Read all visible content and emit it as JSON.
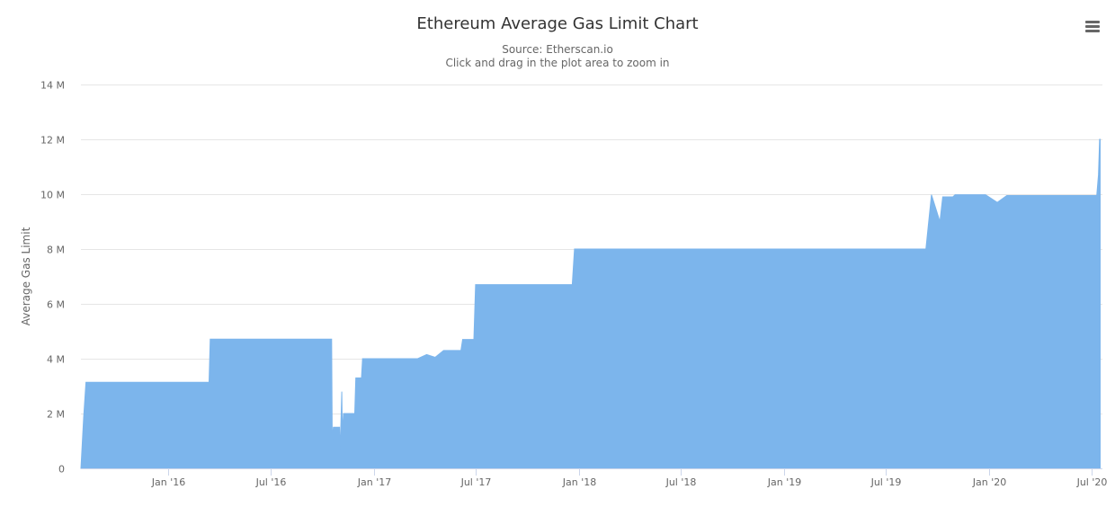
{
  "chart_data": {
    "type": "area",
    "title": "Ethereum Average Gas Limit Chart",
    "subtitle_lines": [
      "Source: Etherscan.io",
      "Click and drag in the plot area to zoom in"
    ],
    "ylabel": "Average Gas Limit",
    "xlabel": "",
    "ylim": [
      0,
      14000000
    ],
    "y_ticks": [
      {
        "value": 0,
        "label": "0"
      },
      {
        "value": 2000000,
        "label": "2 M"
      },
      {
        "value": 4000000,
        "label": "4 M"
      },
      {
        "value": 6000000,
        "label": "6 M"
      },
      {
        "value": 8000000,
        "label": "8 M"
      },
      {
        "value": 10000000,
        "label": "10 M"
      },
      {
        "value": 12000000,
        "label": "12 M"
      },
      {
        "value": 14000000,
        "label": "14 M"
      }
    ],
    "xlim": [
      "2015-07-30",
      "2020-07-20"
    ],
    "x_ticks": [
      {
        "value": "2016-01-01",
        "label": "Jan '16"
      },
      {
        "value": "2016-07-01",
        "label": "Jul '16"
      },
      {
        "value": "2017-01-01",
        "label": "Jan '17"
      },
      {
        "value": "2017-07-01",
        "label": "Jul '17"
      },
      {
        "value": "2018-01-01",
        "label": "Jan '18"
      },
      {
        "value": "2018-07-01",
        "label": "Jul '18"
      },
      {
        "value": "2019-01-01",
        "label": "Jan '19"
      },
      {
        "value": "2019-07-01",
        "label": "Jul '19"
      },
      {
        "value": "2020-01-01",
        "label": "Jan '20"
      },
      {
        "value": "2020-07-01",
        "label": "Jul '20"
      }
    ],
    "grid": true,
    "legend": "none",
    "color": "#7cb5ec",
    "series": [
      {
        "points": [
          {
            "x": "2015-07-30",
            "y": 0
          },
          {
            "x": "2015-08-04",
            "y": 1900000
          },
          {
            "x": "2015-08-08",
            "y": 3140000
          },
          {
            "x": "2016-03-14",
            "y": 3140000
          },
          {
            "x": "2016-03-16",
            "y": 4712000
          },
          {
            "x": "2016-10-18",
            "y": 4712000
          },
          {
            "x": "2016-10-19",
            "y": 1000000
          },
          {
            "x": "2016-10-21",
            "y": 1500000
          },
          {
            "x": "2016-11-01",
            "y": 1500000
          },
          {
            "x": "2016-11-02",
            "y": 500000
          },
          {
            "x": "2016-11-05",
            "y": 2800000
          },
          {
            "x": "2016-11-06",
            "y": 1300000
          },
          {
            "x": "2016-11-08",
            "y": 2000000
          },
          {
            "x": "2016-11-28",
            "y": 2000000
          },
          {
            "x": "2016-11-30",
            "y": 3300000
          },
          {
            "x": "2016-12-10",
            "y": 3300000
          },
          {
            "x": "2016-12-12",
            "y": 4000000
          },
          {
            "x": "2017-03-20",
            "y": 4000000
          },
          {
            "x": "2017-04-05",
            "y": 4150000
          },
          {
            "x": "2017-04-20",
            "y": 4050000
          },
          {
            "x": "2017-05-05",
            "y": 4300000
          },
          {
            "x": "2017-06-05",
            "y": 4300000
          },
          {
            "x": "2017-06-08",
            "y": 4700000
          },
          {
            "x": "2017-06-28",
            "y": 4700000
          },
          {
            "x": "2017-07-01",
            "y": 6700000
          },
          {
            "x": "2017-12-20",
            "y": 6700000
          },
          {
            "x": "2017-12-24",
            "y": 8000000
          },
          {
            "x": "2019-09-10",
            "y": 8000000
          },
          {
            "x": "2019-09-20",
            "y": 9980000
          },
          {
            "x": "2019-10-05",
            "y": 9000000
          },
          {
            "x": "2019-10-10",
            "y": 9900000
          },
          {
            "x": "2019-10-28",
            "y": 9900000
          },
          {
            "x": "2019-11-01",
            "y": 9980000
          },
          {
            "x": "2019-12-25",
            "y": 9980000
          },
          {
            "x": "2020-01-15",
            "y": 9700000
          },
          {
            "x": "2020-02-01",
            "y": 9950000
          },
          {
            "x": "2020-07-10",
            "y": 9950000
          },
          {
            "x": "2020-07-13",
            "y": 10700000
          },
          {
            "x": "2020-07-15",
            "y": 12000000
          },
          {
            "x": "2020-07-16",
            "y": 12000000
          }
        ]
      }
    ]
  },
  "menu": {
    "icon": "hamburger-menu-icon"
  }
}
